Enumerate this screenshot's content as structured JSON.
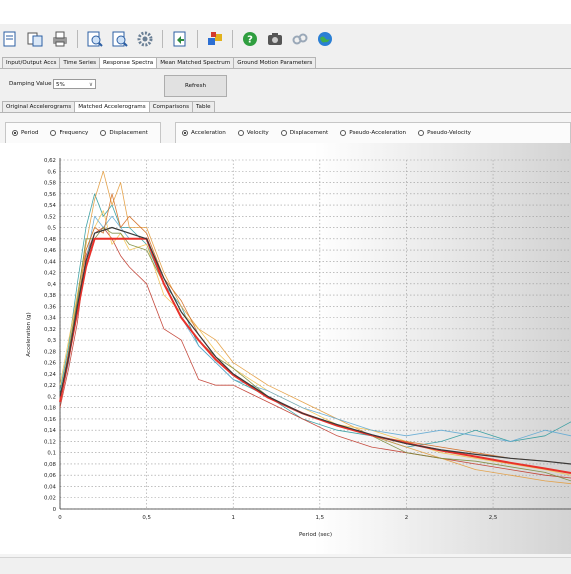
{
  "toolbar": {
    "icons": [
      "open-icon",
      "copy-icon",
      "print-icon",
      "zoom-in-icon",
      "zoom-out-icon",
      "settings-gear-icon",
      "export-icon",
      "database-icon",
      "help-icon",
      "camera-icon",
      "link-icon",
      "globe-icon"
    ]
  },
  "main_tabs": [
    "Input/Output Accs",
    "Time Series",
    "Response Spectra",
    "Mean Matched Spectrum",
    "Ground Motion Parameters"
  ],
  "main_tab_active": "Response Spectra",
  "damping": {
    "label": "Damping Value",
    "value": "5%",
    "refresh_label": "Refresh"
  },
  "sub_tabs": [
    "Original Accelerograms",
    "Matched Accelerograms",
    "Comparisons",
    "Table"
  ],
  "sub_tab_active": "Matched Accelerograms",
  "x_axis_options": [
    {
      "label": "Period",
      "selected": true
    },
    {
      "label": "Frequency",
      "selected": false
    },
    {
      "label": "Displacement",
      "selected": false
    }
  ],
  "y_axis_options": [
    {
      "label": "Acceleration",
      "selected": true
    },
    {
      "label": "Velocity",
      "selected": false
    },
    {
      "label": "Displacement",
      "selected": false
    },
    {
      "label": "Pseudo-Acceleration",
      "selected": false
    },
    {
      "label": "Pseudo-Velocity",
      "selected": false
    }
  ],
  "chart_data": {
    "type": "line",
    "xlabel": "Period (sec)",
    "ylabel": "Acceleration (g)",
    "xlim": [
      0,
      2.95
    ],
    "ylim": [
      0,
      0.62
    ],
    "x_ticks": [
      "0",
      "0,5",
      "1",
      "1,5",
      "2",
      "2,5"
    ],
    "x_tick_values": [
      0,
      0.5,
      1,
      1.5,
      2,
      2.5
    ],
    "y_ticks": [
      "0",
      "0,02",
      "0,04",
      "0,06",
      "0,08",
      "0,1",
      "0,12",
      "0,14",
      "0,16",
      "0,18",
      "0,2",
      "0,22",
      "0,24",
      "0,26",
      "0,28",
      "0,3",
      "0,32",
      "0,34",
      "0,36",
      "0,38",
      "0,4",
      "0,42",
      "0,44",
      "0,46",
      "0,48",
      "0,5",
      "0,52",
      "0,54",
      "0,56",
      "0,58",
      "0,6",
      "0,62"
    ],
    "grid": true,
    "colors": {
      "target": "#e8312a",
      "mean": "#3a3a3a",
      "records": [
        "#2e9a9f",
        "#c0392b",
        "#e39b3c",
        "#f2c14e",
        "#5fa8d3",
        "#d2691e",
        "#7a8b3a",
        "#b03a2e"
      ]
    },
    "series": [
      {
        "role": "target",
        "x": [
          0,
          0.05,
          0.1,
          0.15,
          0.2,
          0.3,
          0.4,
          0.5,
          0.6,
          0.7,
          0.8,
          0.9,
          1.0,
          1.2,
          1.4,
          1.6,
          1.8,
          2.0,
          2.2,
          2.4,
          2.6,
          2.8,
          2.95
        ],
        "y": [
          0.19,
          0.27,
          0.35,
          0.43,
          0.48,
          0.48,
          0.48,
          0.48,
          0.4,
          0.34,
          0.3,
          0.265,
          0.238,
          0.198,
          0.17,
          0.148,
          0.131,
          0.117,
          0.104,
          0.093,
          0.082,
          0.072,
          0.064
        ]
      },
      {
        "role": "mean",
        "x": [
          0,
          0.05,
          0.1,
          0.15,
          0.2,
          0.3,
          0.4,
          0.5,
          0.6,
          0.7,
          0.8,
          0.9,
          1.0,
          1.2,
          1.4,
          1.6,
          1.8,
          2.0,
          2.2,
          2.4,
          2.6,
          2.8,
          2.95
        ],
        "y": [
          0.2,
          0.27,
          0.36,
          0.44,
          0.49,
          0.5,
          0.49,
          0.48,
          0.41,
          0.35,
          0.31,
          0.27,
          0.24,
          0.2,
          0.17,
          0.15,
          0.132,
          0.116,
          0.105,
          0.097,
          0.09,
          0.085,
          0.08
        ]
      },
      {
        "role": "record",
        "x": [
          0,
          0.05,
          0.1,
          0.15,
          0.2,
          0.25,
          0.3,
          0.35,
          0.4,
          0.5,
          0.6,
          0.7,
          0.8,
          0.9,
          1.0,
          1.2,
          1.4,
          1.6,
          1.8,
          2.0,
          2.2,
          2.4,
          2.6,
          2.8,
          2.95
        ],
        "y": [
          0.21,
          0.29,
          0.4,
          0.5,
          0.56,
          0.52,
          0.54,
          0.5,
          0.5,
          0.47,
          0.4,
          0.36,
          0.29,
          0.26,
          0.23,
          0.2,
          0.16,
          0.14,
          0.13,
          0.11,
          0.12,
          0.14,
          0.12,
          0.13,
          0.155
        ]
      },
      {
        "role": "record",
        "x": [
          0,
          0.05,
          0.1,
          0.15,
          0.2,
          0.25,
          0.3,
          0.35,
          0.4,
          0.5,
          0.6,
          0.7,
          0.8,
          0.9,
          1.0,
          1.2,
          1.4,
          1.6,
          1.8,
          2.0,
          2.2,
          2.4,
          2.6,
          2.8,
          2.95
        ],
        "y": [
          0.18,
          0.25,
          0.33,
          0.45,
          0.49,
          0.5,
          0.48,
          0.45,
          0.43,
          0.4,
          0.32,
          0.3,
          0.23,
          0.22,
          0.22,
          0.19,
          0.16,
          0.13,
          0.11,
          0.1,
          0.09,
          0.08,
          0.07,
          0.06,
          0.055
        ]
      },
      {
        "role": "record",
        "x": [
          0,
          0.05,
          0.1,
          0.15,
          0.2,
          0.25,
          0.3,
          0.35,
          0.4,
          0.5,
          0.6,
          0.7,
          0.8,
          0.9,
          1.0,
          1.2,
          1.4,
          1.6,
          1.8,
          2.0,
          2.2,
          2.4,
          2.6,
          2.8,
          2.95
        ],
        "y": [
          0.2,
          0.28,
          0.38,
          0.47,
          0.55,
          0.6,
          0.54,
          0.58,
          0.5,
          0.5,
          0.42,
          0.36,
          0.32,
          0.3,
          0.26,
          0.22,
          0.19,
          0.16,
          0.13,
          0.11,
          0.09,
          0.07,
          0.06,
          0.05,
          0.045
        ]
      },
      {
        "role": "record",
        "x": [
          0,
          0.05,
          0.1,
          0.15,
          0.2,
          0.25,
          0.3,
          0.35,
          0.4,
          0.5,
          0.6,
          0.7,
          0.8,
          0.9,
          1.0,
          1.2,
          1.4,
          1.6,
          1.8,
          2.0,
          2.2,
          2.4,
          2.6,
          2.8,
          2.95
        ],
        "y": [
          0.22,
          0.3,
          0.38,
          0.46,
          0.5,
          0.53,
          0.47,
          0.49,
          0.46,
          0.47,
          0.38,
          0.35,
          0.32,
          0.28,
          0.25,
          0.21,
          0.18,
          0.15,
          0.14,
          0.12,
          0.1,
          0.09,
          0.08,
          0.07,
          0.06
        ]
      },
      {
        "role": "record",
        "x": [
          0,
          0.05,
          0.1,
          0.15,
          0.2,
          0.25,
          0.3,
          0.35,
          0.4,
          0.5,
          0.6,
          0.7,
          0.8,
          0.9,
          1.0,
          1.2,
          1.4,
          1.6,
          1.8,
          2.0,
          2.2,
          2.4,
          2.6,
          2.8,
          2.95
        ],
        "y": [
          0.19,
          0.26,
          0.37,
          0.44,
          0.52,
          0.5,
          0.52,
          0.5,
          0.48,
          0.48,
          0.4,
          0.34,
          0.29,
          0.26,
          0.23,
          0.21,
          0.18,
          0.16,
          0.14,
          0.13,
          0.14,
          0.13,
          0.12,
          0.14,
          0.13
        ]
      },
      {
        "role": "record",
        "x": [
          0,
          0.05,
          0.1,
          0.15,
          0.2,
          0.25,
          0.3,
          0.35,
          0.4,
          0.5,
          0.6,
          0.7,
          0.8,
          0.9,
          1.0,
          1.2,
          1.4,
          1.6,
          1.8,
          2.0,
          2.2,
          2.4,
          2.6,
          2.8,
          2.95
        ],
        "y": [
          0.2,
          0.27,
          0.36,
          0.46,
          0.5,
          0.49,
          0.56,
          0.5,
          0.52,
          0.49,
          0.41,
          0.37,
          0.31,
          0.27,
          0.24,
          0.2,
          0.17,
          0.15,
          0.13,
          0.12,
          0.11,
          0.1,
          0.09,
          0.085,
          0.08
        ]
      },
      {
        "role": "record",
        "x": [
          0,
          0.05,
          0.1,
          0.15,
          0.2,
          0.25,
          0.3,
          0.35,
          0.4,
          0.5,
          0.6,
          0.7,
          0.8,
          0.9,
          1.0,
          1.2,
          1.4,
          1.6,
          1.8,
          2.0,
          2.2,
          2.4,
          2.6,
          2.8,
          2.95
        ],
        "y": [
          0.2,
          0.28,
          0.37,
          0.48,
          0.48,
          0.5,
          0.49,
          0.49,
          0.47,
          0.46,
          0.4,
          0.34,
          0.3,
          0.27,
          0.25,
          0.2,
          0.17,
          0.15,
          0.13,
          0.1,
          0.09,
          0.085,
          0.075,
          0.065,
          0.05
        ]
      }
    ]
  }
}
